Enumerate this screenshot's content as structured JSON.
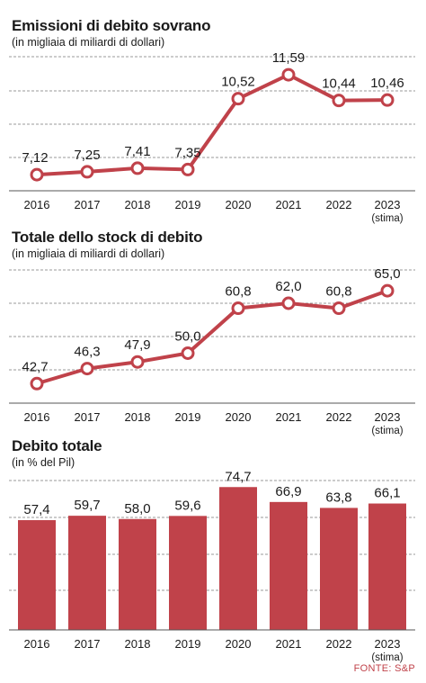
{
  "chart_data": [
    {
      "type": "line",
      "title": "Emissioni di debito sovrano",
      "subtitle": "(in migliaia di miliardi di dollari)",
      "categories": [
        "2016",
        "2017",
        "2018",
        "2019",
        "2020",
        "2021",
        "2022",
        "2023"
      ],
      "category_notes": [
        "",
        "",
        "",
        "",
        "",
        "",
        "",
        "(stima)"
      ],
      "values": [
        7.12,
        7.25,
        7.41,
        7.35,
        10.52,
        11.59,
        10.44,
        10.46
      ],
      "value_labels": [
        "7,12",
        "7,25",
        "7,41",
        "7,35",
        "10,52",
        "11,59",
        "10,44",
        "10,46"
      ],
      "ylim": [
        6.4,
        12.4
      ],
      "grid": true,
      "color": "#c0424a"
    },
    {
      "type": "line",
      "title": "Totale dello stock di debito",
      "subtitle": "(in migliaia di miliardi di dollari)",
      "categories": [
        "2016",
        "2017",
        "2018",
        "2019",
        "2020",
        "2021",
        "2022",
        "2023"
      ],
      "category_notes": [
        "",
        "",
        "",
        "",
        "",
        "",
        "",
        "(stima)"
      ],
      "values": [
        42.7,
        46.3,
        47.9,
        50.0,
        60.8,
        62.0,
        60.8,
        65.0
      ],
      "value_labels": [
        "42,7",
        "46,3",
        "47,9",
        "50,0",
        "60,8",
        "62,0",
        "60,8",
        "65,0"
      ],
      "ylim": [
        38,
        70
      ],
      "grid": true,
      "color": "#c0424a"
    },
    {
      "type": "bar",
      "title": "Debito totale",
      "subtitle": "(in % del Pil)",
      "categories": [
        "2016",
        "2017",
        "2018",
        "2019",
        "2020",
        "2021",
        "2022",
        "2023"
      ],
      "category_notes": [
        "",
        "",
        "",
        "",
        "",
        "",
        "",
        "(stima)"
      ],
      "values": [
        57.4,
        59.7,
        58.0,
        59.6,
        74.7,
        66.9,
        63.8,
        66.1
      ],
      "value_labels": [
        "57,4",
        "59,7",
        "58,0",
        "59,6",
        "74,7",
        "66,9",
        "63,8",
        "66,1"
      ],
      "ylim": [
        0,
        80
      ],
      "grid": true,
      "color": "#c0424a"
    }
  ],
  "source": "FONTE: S&P"
}
